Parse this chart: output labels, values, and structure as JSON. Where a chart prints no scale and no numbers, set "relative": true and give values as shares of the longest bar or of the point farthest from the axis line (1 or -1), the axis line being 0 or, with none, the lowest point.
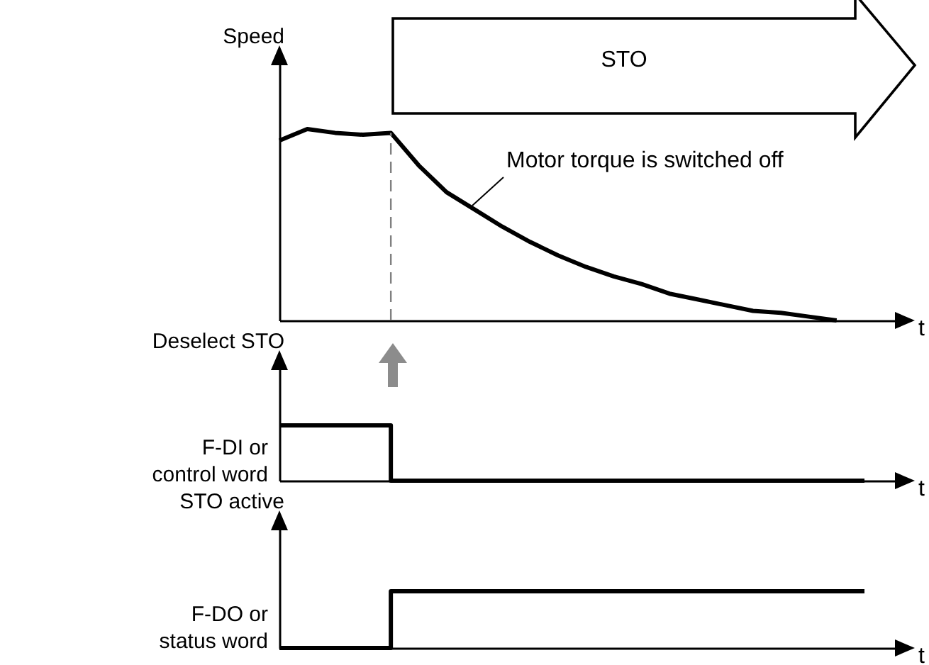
{
  "chart_data": [
    {
      "type": "line",
      "relative": true,
      "ylabel": "Speed",
      "xlabel": "t",
      "categories": [
        null,
        null,
        null,
        null,
        null,
        null,
        null,
        null,
        null,
        null,
        null,
        null,
        null,
        null,
        null,
        null,
        null,
        null,
        null,
        null,
        null,
        null,
        null
      ],
      "series": [
        {
          "color": "#000000",
          "values": [
            0.94,
            1.0,
            0.98,
            0.97,
            0.98,
            0.81,
            0.67,
            0.58,
            0.49,
            0.41,
            0.34,
            0.28,
            0.23,
            0.19,
            0.14,
            0.11,
            0.08,
            0.05,
            0.04,
            0.02,
            0,
            null,
            null
          ]
        }
      ],
      "annotations": [
        "STO",
        "Motor torque is switched off"
      ]
    },
    {
      "type": "step",
      "relative": true,
      "ylabel": "Deselect STO",
      "xlabel": "t",
      "legend": "left",
      "categories": [
        null,
        null,
        null,
        null,
        null,
        null,
        null,
        null,
        null,
        null,
        null,
        null,
        null,
        null,
        null,
        null,
        null,
        null,
        null,
        null,
        null,
        null,
        null
      ],
      "series": [
        {
          "name": "F-DI or control word",
          "color": "#000000",
          "values": [
            1,
            1,
            1,
            1,
            0,
            0,
            0,
            0,
            0,
            0,
            0,
            0,
            0,
            0,
            0,
            0,
            0,
            0,
            0,
            0,
            0,
            0,
            null
          ]
        }
      ]
    },
    {
      "type": "step",
      "relative": true,
      "ylabel": "STO active",
      "xlabel": "t",
      "legend": "left",
      "categories": [
        null,
        null,
        null,
        null,
        null,
        null,
        null,
        null,
        null,
        null,
        null,
        null,
        null,
        null,
        null,
        null,
        null,
        null,
        null,
        null,
        null,
        null,
        null
      ],
      "series": [
        {
          "name": "F-DO or status word",
          "color": "#000000",
          "values": [
            0,
            0,
            0,
            0,
            1,
            1,
            1,
            1,
            1,
            1,
            1,
            1,
            1,
            1,
            1,
            1,
            1,
            1,
            1,
            1,
            1,
            1,
            null
          ]
        }
      ]
    }
  ]
}
